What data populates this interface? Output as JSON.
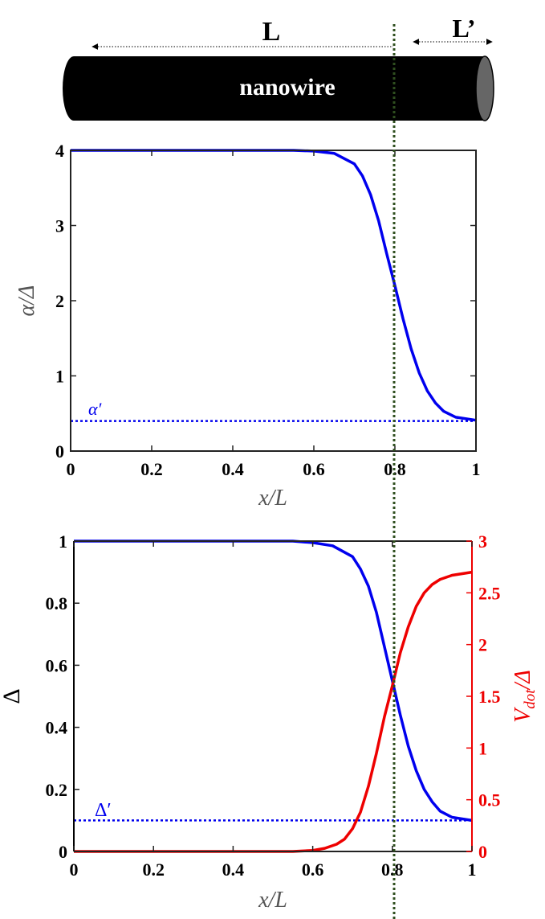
{
  "nanowire": {
    "label": "nanowire",
    "L_label": "L",
    "Lprime_label": "L’"
  },
  "colors": {
    "blue": "#0000ee",
    "red": "#ee0000",
    "dotted_line": "#2f4f1f",
    "wire": "#000000",
    "wire_cap": "#666666"
  },
  "chart_data": [
    {
      "type": "line",
      "title": "",
      "xlabel": "x/L",
      "ylabel": "α/Δ",
      "xlim": [
        0,
        1
      ],
      "ylim": [
        0,
        4
      ],
      "x_ticks": [
        "0",
        "0.2",
        "0.4",
        "0.6",
        "0.8",
        "1"
      ],
      "y_ticks": [
        "0",
        "1",
        "2",
        "3",
        "4"
      ],
      "vertical_marker_x": 0.8,
      "series": [
        {
          "color": "#0000ee",
          "style": "solid",
          "x": [
            0,
            0.1,
            0.2,
            0.3,
            0.4,
            0.5,
            0.55,
            0.6,
            0.65,
            0.7,
            0.72,
            0.74,
            0.76,
            0.78,
            0.8,
            0.82,
            0.84,
            0.86,
            0.88,
            0.9,
            0.92,
            0.95,
            1.0
          ],
          "values": [
            4.0,
            4.0,
            4.0,
            4.0,
            4.0,
            4.0,
            4.0,
            3.99,
            3.96,
            3.82,
            3.66,
            3.41,
            3.06,
            2.62,
            2.2,
            1.76,
            1.36,
            1.04,
            0.8,
            0.64,
            0.53,
            0.45,
            0.41
          ]
        },
        {
          "name": "α′",
          "color": "#0000ee",
          "style": "dotted",
          "x": [
            0,
            1
          ],
          "values": [
            0.4,
            0.4
          ]
        }
      ]
    },
    {
      "type": "line",
      "title": "",
      "xlabel": "x/L",
      "ylabel": "Δ",
      "y2label": "V_dot/Δ",
      "xlim": [
        0,
        1
      ],
      "ylim": [
        0,
        1
      ],
      "y2lim": [
        0,
        3
      ],
      "x_ticks": [
        "0",
        "0.2",
        "0.4",
        "0.6",
        "0.8",
        "1"
      ],
      "y_ticks": [
        "0",
        "0.2",
        "0.4",
        "0.6",
        "0.8",
        "1"
      ],
      "y2_ticks": [
        "0",
        "0.5",
        "1",
        "1.5",
        "2",
        "2.5",
        "3"
      ],
      "vertical_marker_x": 0.8,
      "series": [
        {
          "color": "#0000ee",
          "axis": "left",
          "style": "solid",
          "x": [
            0,
            0.1,
            0.2,
            0.3,
            0.4,
            0.5,
            0.55,
            0.6,
            0.65,
            0.7,
            0.72,
            0.74,
            0.76,
            0.78,
            0.8,
            0.82,
            0.84,
            0.86,
            0.88,
            0.9,
            0.92,
            0.95,
            1.0
          ],
          "values": [
            1.0,
            1.0,
            1.0,
            1.0,
            1.0,
            1.0,
            1.0,
            0.995,
            0.985,
            0.95,
            0.91,
            0.855,
            0.77,
            0.66,
            0.55,
            0.44,
            0.34,
            0.26,
            0.2,
            0.16,
            0.13,
            0.11,
            0.1
          ]
        },
        {
          "name": "Δ′",
          "color": "#0000ee",
          "axis": "left",
          "style": "dotted",
          "x": [
            0,
            1
          ],
          "values": [
            0.1,
            0.1
          ]
        },
        {
          "color": "#ee0000",
          "axis": "right",
          "style": "solid",
          "x": [
            0,
            0.1,
            0.2,
            0.3,
            0.4,
            0.5,
            0.55,
            0.6,
            0.63,
            0.66,
            0.68,
            0.7,
            0.72,
            0.74,
            0.76,
            0.78,
            0.8,
            0.82,
            0.84,
            0.86,
            0.88,
            0.9,
            0.92,
            0.95,
            1.0
          ],
          "values": [
            0,
            0,
            0,
            0,
            0,
            0,
            0,
            0.01,
            0.03,
            0.07,
            0.12,
            0.22,
            0.38,
            0.63,
            0.95,
            1.3,
            1.6,
            1.92,
            2.17,
            2.37,
            2.5,
            2.58,
            2.63,
            2.67,
            2.7
          ]
        }
      ]
    }
  ]
}
